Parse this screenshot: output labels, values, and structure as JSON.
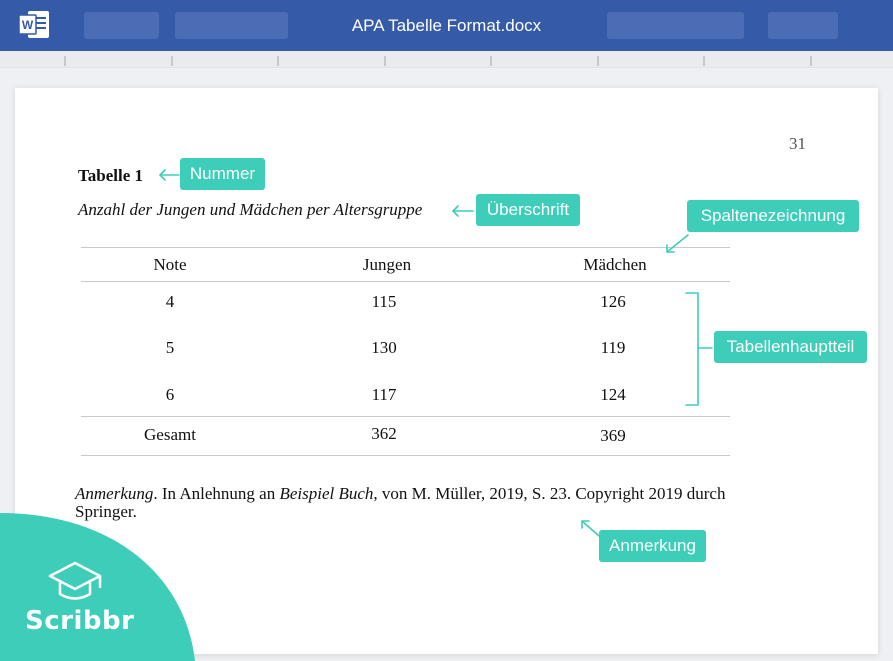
{
  "window": {
    "title": "APA Tabelle Format.docx",
    "app_icon": "word-icon",
    "brand_color": "#345aa8"
  },
  "document": {
    "page_number": "31",
    "table_label": "Tabelle 1",
    "table_title": "Anzahl der Jungen und Mädchen per Altersgruppe",
    "columns": [
      "Note",
      "Jungen",
      "Mädchen"
    ],
    "rows": [
      [
        "4",
        "115",
        "126"
      ],
      [
        "5",
        "130",
        "119"
      ],
      [
        "6",
        "117",
        "124"
      ]
    ],
    "total_row": [
      "Gesamt",
      "362",
      "369"
    ],
    "note": {
      "lead": "Anmerkung",
      "part1": ". In Anlehnung an ",
      "book": "Beispiel Buch",
      "part2": ", von M. Müller, 2019, S. 23. Copyright 2019 durch Springer."
    }
  },
  "annotations": {
    "nummer": "Nummer",
    "ueberschrift": "Überschrift",
    "spaltenbezeichnung": "Spaltenezeichnung",
    "tabellenhauptteil": "Tabellenhauptteil",
    "anmerkung": "Anmerkung",
    "color": "#3ecdb8"
  },
  "brand": {
    "name": "Scribbr",
    "icon": "graduation-cap-icon"
  }
}
